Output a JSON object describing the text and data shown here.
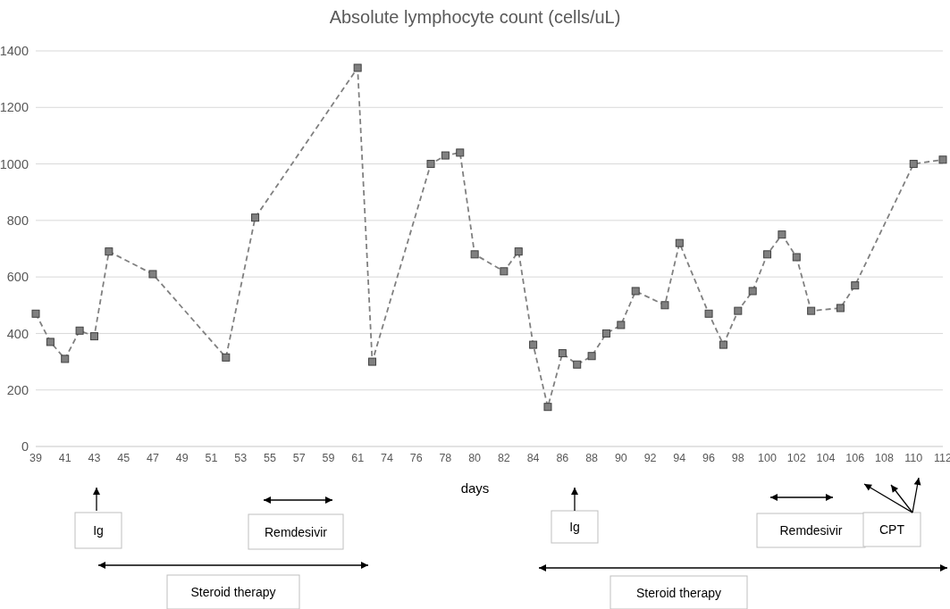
{
  "chart_data": {
    "type": "line",
    "title": "Absolute lymphocyte count (cells/uL)",
    "xlabel": "days",
    "categories": [
      "39",
      null,
      "41",
      null,
      "43",
      null,
      "45",
      null,
      "47",
      null,
      "49",
      null,
      "51",
      null,
      "53",
      null,
      "55",
      null,
      "57",
      null,
      "59",
      null,
      "61",
      null,
      "74",
      null,
      "76",
      null,
      "78",
      null,
      "80",
      null,
      "82",
      null,
      "84",
      null,
      "86",
      null,
      "88",
      null,
      "90",
      null,
      "92",
      null,
      "94",
      null,
      "96",
      null,
      "98",
      null,
      "100",
      null,
      "102",
      null,
      "104",
      null,
      "106",
      null,
      "108",
      null,
      "110",
      null,
      "112"
    ],
    "series": [
      {
        "color": "#808080",
        "values": [
          470,
          370,
          310,
          410,
          390,
          690,
          null,
          null,
          610,
          null,
          null,
          null,
          null,
          315,
          null,
          810,
          null,
          null,
          null,
          null,
          null,
          null,
          1340,
          300,
          null,
          null,
          null,
          1000,
          1030,
          1040,
          680,
          null,
          620,
          690,
          360,
          140,
          330,
          290,
          320,
          400,
          430,
          550,
          null,
          500,
          720,
          null,
          470,
          360,
          480,
          550,
          680,
          750,
          670,
          480,
          null,
          490,
          570,
          null,
          null,
          null,
          1000,
          null,
          1015
        ]
      }
    ],
    "ylim": [
      0,
      1400
    ],
    "yticks": [
      0,
      200,
      400,
      600,
      800,
      1000,
      1200,
      1400
    ],
    "grid": "y",
    "legend": false,
    "marker": "square",
    "line_style": "dashed",
    "annotations": [
      "Ig",
      "Remdesivir",
      "Steroid therapy",
      "Ig",
      "Remdesivir",
      "Steroid therapy",
      "CPT"
    ]
  }
}
